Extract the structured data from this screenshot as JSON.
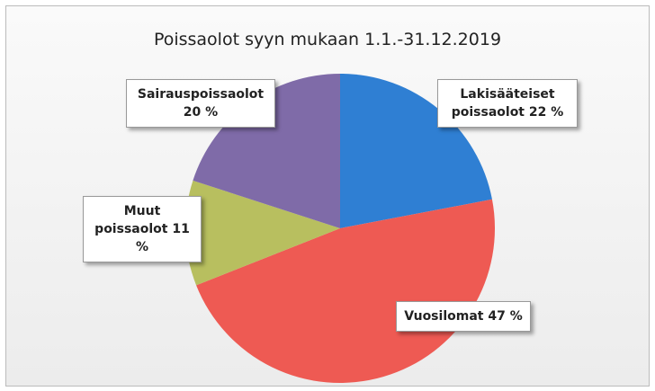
{
  "chart_data": {
    "type": "pie",
    "title": "Poissaolot syyn mukaan 1.1.-31.12.2019",
    "categories": [
      "Lakisääteiset poissaolot",
      "Vuosilomat",
      "Muut poissaolot",
      "Sairauspoissaolot"
    ],
    "values": [
      22,
      47,
      11,
      20
    ],
    "value_labels": [
      "22 %",
      "47 %",
      "11 %",
      "20 %"
    ],
    "colors": [
      "#2f7fd3",
      "#ee5a53",
      "#b8bf5f",
      "#7f6ba8"
    ]
  }
}
